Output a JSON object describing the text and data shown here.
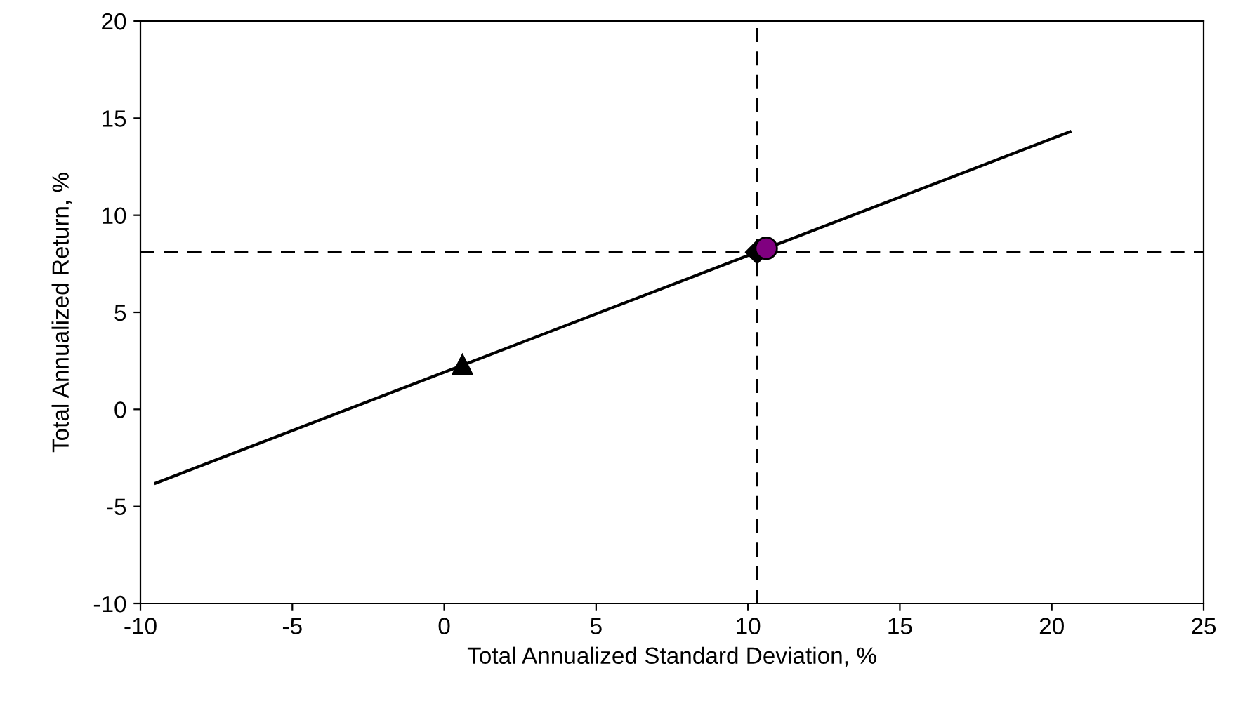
{
  "chart_data": {
    "type": "scatter",
    "xlabel": "Total Annualized Standard Deviation, %",
    "ylabel": "Total Annualized Return, %",
    "series": [
      {
        "type": "line",
        "color": "#000000",
        "x": [
          -9.5,
          20.6
        ],
        "values": [
          -3.8,
          14.3
        ],
        "marker": "none",
        "line_style": "solid"
      },
      {
        "color": "#000000",
        "x": [
          0.6
        ],
        "values": [
          2.3
        ],
        "marker": "triangle"
      },
      {
        "color": "#000000",
        "x": [
          10.3
        ],
        "values": [
          8.1
        ],
        "marker": "diamond"
      },
      {
        "color": "#800080",
        "x": [
          10.6
        ],
        "values": [
          8.3
        ],
        "marker": "circle"
      }
    ],
    "ref_lines": [
      {
        "axis": "x",
        "value": 10.3,
        "color": "#000000",
        "line_style": "dashed"
      },
      {
        "axis": "y",
        "value": 8.1,
        "color": "#000000",
        "line_style": "dashed"
      }
    ],
    "xlim": [
      -10,
      25
    ],
    "xticks": [
      -10,
      -5,
      0,
      5,
      10,
      15,
      20,
      25
    ],
    "ylim": [
      -10,
      20
    ],
    "yticks": [
      -10,
      -5,
      0,
      5,
      10,
      15,
      20
    ],
    "grid": false,
    "legend": false
  }
}
